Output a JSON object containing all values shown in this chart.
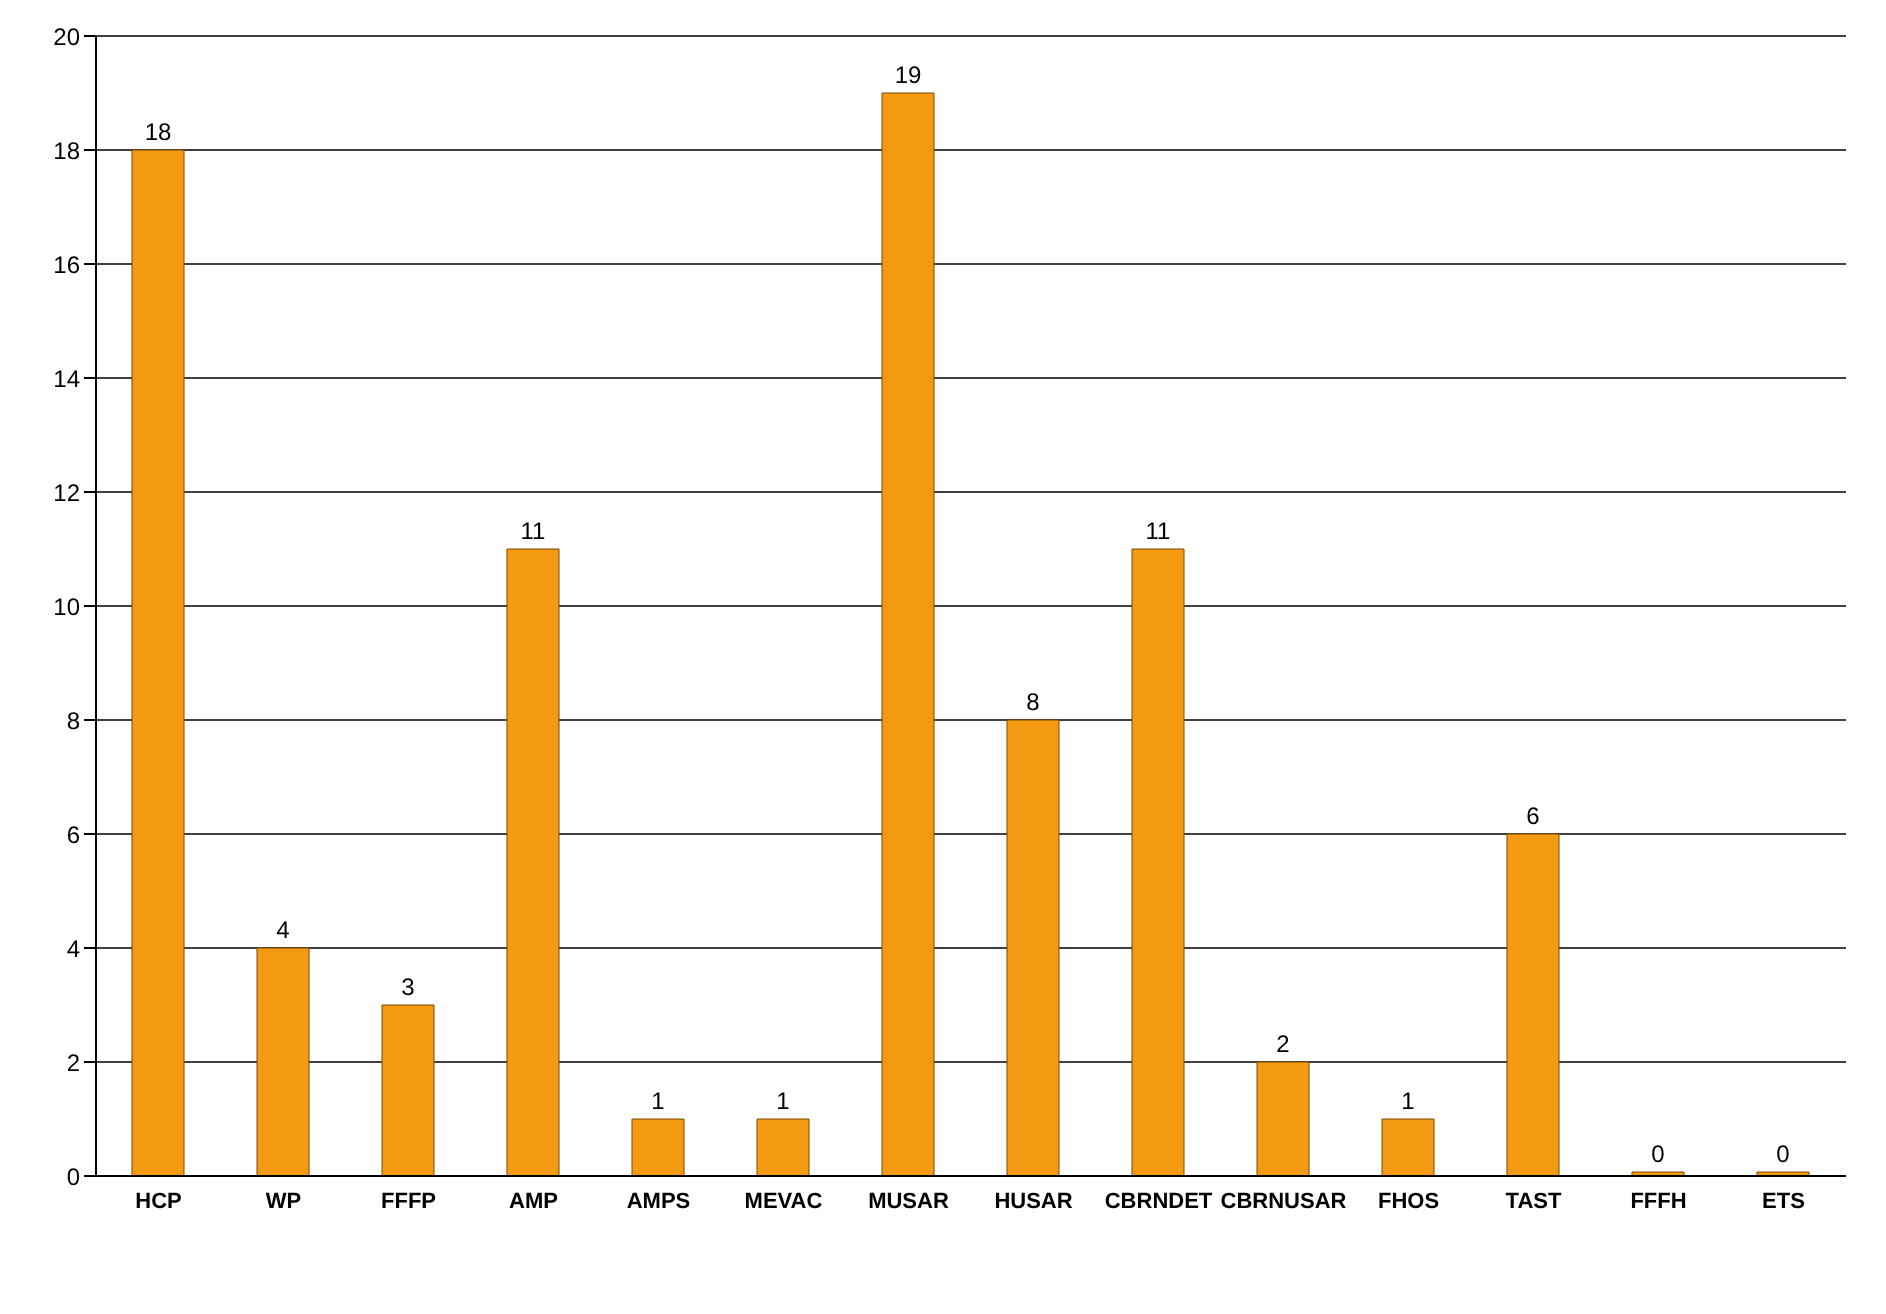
{
  "chart_data": {
    "type": "bar",
    "categories": [
      "HCP",
      "WP",
      "FFFP",
      "AMP",
      "AMPS",
      "MEVAC",
      "MUSAR",
      "HUSAR",
      "CBRNDET",
      "CBRNUSAR",
      "FHOS",
      "TAST",
      "FFFH",
      "ETS"
    ],
    "values": [
      18,
      4,
      3,
      11,
      1,
      1,
      19,
      8,
      11,
      2,
      1,
      6,
      0,
      0
    ],
    "color": "#f39a12",
    "ylim": [
      0,
      20
    ],
    "yticks": [
      0,
      2,
      4,
      6,
      8,
      10,
      12,
      14,
      16,
      18,
      20
    ],
    "grid": "y",
    "data_labels": true
  }
}
